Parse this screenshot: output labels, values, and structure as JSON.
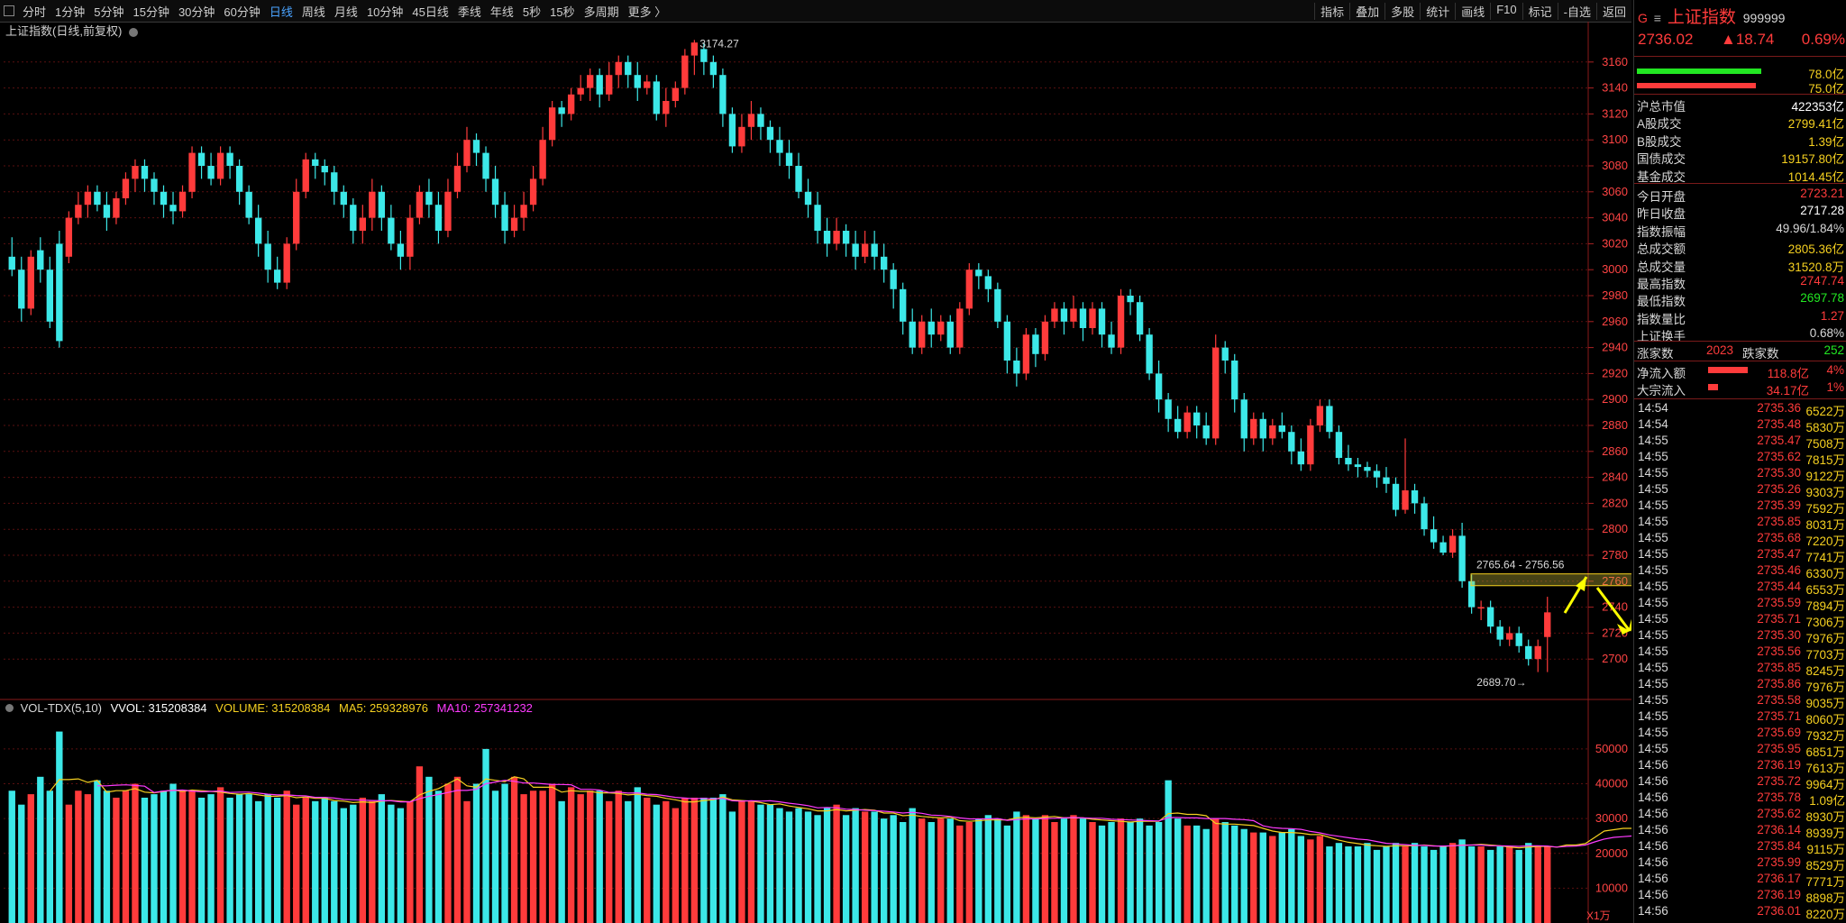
{
  "toolbar": {
    "periods": [
      "分时",
      "1分钟",
      "5分钟",
      "15分钟",
      "30分钟",
      "60分钟",
      "日线",
      "周线",
      "月线",
      "10分钟",
      "45日线",
      "季线",
      "年线",
      "5秒",
      "15秒",
      "多周期",
      "更多 〉"
    ],
    "active_period": "日线",
    "tools": [
      "指标",
      "叠加",
      "多股",
      "统计",
      "画线",
      "F10",
      "标记",
      "-自选",
      "返回"
    ]
  },
  "chart_title": "上证指数(日线,前复权)",
  "price_axis": {
    "ticks": [
      3160,
      3140,
      3120,
      3100,
      3080,
      3060,
      3040,
      3020,
      3000,
      2980,
      2960,
      2940,
      2920,
      2900,
      2880,
      2860,
      2840,
      2820,
      2800,
      2780,
      2760,
      2740,
      2720,
      2700
    ],
    "min": 2680,
    "max": 3180
  },
  "annotations": {
    "high_label": "3174.27",
    "low_label": "2689.70",
    "range_label": "2765.64 - 2756.56"
  },
  "volume": {
    "info_name": "VOL-TDX(5,10)",
    "vvol": "VVOL: 315208384",
    "volume": "VOLUME: 315208384",
    "ma5": "MA5: 259328976",
    "ma10": "MA10: 257341232",
    "ticks": [
      50000,
      40000,
      30000,
      20000,
      10000
    ],
    "unit": "X1万"
  },
  "candles": [
    [
      3010,
      3000,
      3025,
      2995
    ],
    [
      3000,
      2970,
      3010,
      2960
    ],
    [
      2970,
      3010,
      3015,
      2965
    ],
    [
      3015,
      3000,
      3025,
      2990
    ],
    [
      3000,
      2960,
      3010,
      2955
    ],
    [
      3020,
      2945,
      3030,
      2940
    ],
    [
      3010,
      3040,
      3045,
      3005
    ],
    [
      3040,
      3050,
      3060,
      3035
    ],
    [
      3050,
      3060,
      3065,
      3040
    ],
    [
      3060,
      3050,
      3065,
      3045
    ],
    [
      3050,
      3040,
      3060,
      3030
    ],
    [
      3040,
      3055,
      3060,
      3035
    ],
    [
      3055,
      3070,
      3075,
      3050
    ],
    [
      3070,
      3080,
      3085,
      3060
    ],
    [
      3080,
      3070,
      3085,
      3060
    ],
    [
      3070,
      3060,
      3075,
      3050
    ],
    [
      3060,
      3050,
      3065,
      3040
    ],
    [
      3050,
      3045,
      3060,
      3035
    ],
    [
      3045,
      3060,
      3065,
      3040
    ],
    [
      3060,
      3090,
      3095,
      3055
    ],
    [
      3090,
      3080,
      3095,
      3070
    ],
    [
      3080,
      3070,
      3090,
      3065
    ],
    [
      3070,
      3090,
      3095,
      3065
    ],
    [
      3090,
      3080,
      3095,
      3070
    ],
    [
      3080,
      3060,
      3085,
      3050
    ],
    [
      3060,
      3040,
      3065,
      3035
    ],
    [
      3040,
      3020,
      3050,
      3010
    ],
    [
      3020,
      3000,
      3030,
      2990
    ],
    [
      3000,
      2990,
      3010,
      2985
    ],
    [
      2990,
      3020,
      3025,
      2985
    ],
    [
      3020,
      3060,
      3070,
      3015
    ],
    [
      3060,
      3085,
      3090,
      3055
    ],
    [
      3085,
      3080,
      3090,
      3070
    ],
    [
      3080,
      3075,
      3085,
      3065
    ],
    [
      3075,
      3060,
      3080,
      3050
    ],
    [
      3060,
      3050,
      3065,
      3040
    ],
    [
      3050,
      3030,
      3055,
      3020
    ],
    [
      3030,
      3040,
      3050,
      3020
    ],
    [
      3040,
      3060,
      3070,
      3030
    ],
    [
      3060,
      3040,
      3065,
      3030
    ],
    [
      3040,
      3020,
      3050,
      3015
    ],
    [
      3020,
      3010,
      3030,
      3000
    ],
    [
      3010,
      3040,
      3050,
      3000
    ],
    [
      3040,
      3060,
      3065,
      3035
    ],
    [
      3060,
      3050,
      3070,
      3040
    ],
    [
      3050,
      3030,
      3060,
      3020
    ],
    [
      3030,
      3060,
      3070,
      3025
    ],
    [
      3060,
      3080,
      3090,
      3055
    ],
    [
      3080,
      3100,
      3110,
      3075
    ],
    [
      3100,
      3090,
      3105,
      3080
    ],
    [
      3090,
      3070,
      3095,
      3060
    ],
    [
      3070,
      3050,
      3080,
      3040
    ],
    [
      3050,
      3030,
      3060,
      3020
    ],
    [
      3030,
      3040,
      3050,
      3025
    ],
    [
      3040,
      3050,
      3060,
      3030
    ],
    [
      3050,
      3070,
      3080,
      3045
    ],
    [
      3070,
      3100,
      3110,
      3065
    ],
    [
      3100,
      3125,
      3130,
      3095
    ],
    [
      3125,
      3120,
      3130,
      3110
    ],
    [
      3120,
      3135,
      3140,
      3115
    ],
    [
      3135,
      3140,
      3150,
      3130
    ],
    [
      3140,
      3150,
      3155,
      3130
    ],
    [
      3150,
      3135,
      3155,
      3125
    ],
    [
      3135,
      3150,
      3160,
      3130
    ],
    [
      3150,
      3160,
      3165,
      3140
    ],
    [
      3160,
      3150,
      3165,
      3140
    ],
    [
      3150,
      3140,
      3160,
      3130
    ],
    [
      3140,
      3145,
      3150,
      3135
    ],
    [
      3145,
      3120,
      3150,
      3115
    ],
    [
      3120,
      3130,
      3140,
      3110
    ],
    [
      3130,
      3140,
      3145,
      3125
    ],
    [
      3140,
      3165,
      3170,
      3135
    ],
    [
      3165,
      3175,
      3177,
      3150
    ],
    [
      3170,
      3160,
      3175,
      3150
    ],
    [
      3160,
      3150,
      3165,
      3140
    ],
    [
      3150,
      3120,
      3155,
      3110
    ],
    [
      3120,
      3095,
      3125,
      3090
    ],
    [
      3095,
      3110,
      3120,
      3090
    ],
    [
      3110,
      3120,
      3130,
      3100
    ],
    [
      3120,
      3110,
      3125,
      3100
    ],
    [
      3110,
      3100,
      3115,
      3090
    ],
    [
      3100,
      3090,
      3110,
      3080
    ],
    [
      3090,
      3080,
      3100,
      3070
    ],
    [
      3080,
      3060,
      3090,
      3055
    ],
    [
      3060,
      3050,
      3070,
      3040
    ],
    [
      3050,
      3030,
      3060,
      3020
    ],
    [
      3030,
      3020,
      3040,
      3010
    ],
    [
      3020,
      3030,
      3040,
      3015
    ],
    [
      3030,
      3020,
      3035,
      3010
    ],
    [
      3020,
      3010,
      3030,
      3000
    ],
    [
      3010,
      3020,
      3030,
      3005
    ],
    [
      3020,
      3010,
      3030,
      3000
    ],
    [
      3010,
      3000,
      3020,
      2990
    ],
    [
      3000,
      2985,
      3005,
      2970
    ],
    [
      2985,
      2960,
      2990,
      2950
    ],
    [
      2960,
      2940,
      2970,
      2935
    ],
    [
      2940,
      2960,
      2965,
      2935
    ],
    [
      2960,
      2950,
      2970,
      2940
    ],
    [
      2950,
      2960,
      2965,
      2945
    ],
    [
      2960,
      2940,
      2965,
      2935
    ],
    [
      2940,
      2970,
      2975,
      2935
    ],
    [
      2970,
      3000,
      3005,
      2965
    ],
    [
      3000,
      2995,
      3005,
      2985
    ],
    [
      2995,
      2985,
      3000,
      2975
    ],
    [
      2985,
      2960,
      2990,
      2955
    ],
    [
      2960,
      2930,
      2965,
      2920
    ],
    [
      2930,
      2920,
      2940,
      2910
    ],
    [
      2920,
      2950,
      2955,
      2915
    ],
    [
      2950,
      2935,
      2955,
      2925
    ],
    [
      2935,
      2960,
      2965,
      2930
    ],
    [
      2960,
      2970,
      2975,
      2955
    ],
    [
      2970,
      2960,
      2975,
      2950
    ],
    [
      2960,
      2970,
      2980,
      2955
    ],
    [
      2970,
      2955,
      2975,
      2945
    ],
    [
      2955,
      2970,
      2975,
      2950
    ],
    [
      2970,
      2950,
      2975,
      2940
    ],
    [
      2950,
      2940,
      2960,
      2935
    ],
    [
      2940,
      2980,
      2985,
      2935
    ],
    [
      2980,
      2975,
      2985,
      2965
    ],
    [
      2975,
      2950,
      2980,
      2945
    ],
    [
      2950,
      2920,
      2955,
      2915
    ],
    [
      2920,
      2900,
      2930,
      2890
    ],
    [
      2900,
      2885,
      2905,
      2875
    ],
    [
      2885,
      2875,
      2895,
      2870
    ],
    [
      2875,
      2890,
      2895,
      2870
    ],
    [
      2890,
      2880,
      2895,
      2870
    ],
    [
      2880,
      2870,
      2890,
      2865
    ],
    [
      2870,
      2940,
      2950,
      2865
    ],
    [
      2940,
      2930,
      2945,
      2920
    ],
    [
      2930,
      2900,
      2935,
      2890
    ],
    [
      2900,
      2870,
      2905,
      2860
    ],
    [
      2870,
      2885,
      2890,
      2865
    ],
    [
      2885,
      2870,
      2890,
      2860
    ],
    [
      2870,
      2880,
      2885,
      2865
    ],
    [
      2880,
      2875,
      2890,
      2870
    ],
    [
      2875,
      2860,
      2880,
      2850
    ],
    [
      2860,
      2850,
      2870,
      2845
    ],
    [
      2850,
      2880,
      2885,
      2845
    ],
    [
      2880,
      2895,
      2900,
      2875
    ],
    [
      2895,
      2875,
      2900,
      2870
    ],
    [
      2875,
      2855,
      2880,
      2850
    ],
    [
      2855,
      2850,
      2865,
      2845
    ],
    [
      2850,
      2848,
      2855,
      2840
    ],
    [
      2848,
      2845,
      2852,
      2840
    ],
    [
      2845,
      2840,
      2850,
      2832
    ],
    [
      2840,
      2835,
      2848,
      2828
    ],
    [
      2835,
      2815,
      2840,
      2810
    ],
    [
      2815,
      2830,
      2870,
      2812
    ],
    [
      2830,
      2820,
      2835,
      2812
    ],
    [
      2820,
      2800,
      2825,
      2795
    ],
    [
      2800,
      2790,
      2810,
      2785
    ],
    [
      2790,
      2782,
      2795,
      2780
    ],
    [
      2782,
      2795,
      2800,
      2778
    ],
    [
      2795,
      2760,
      2805,
      2755
    ],
    [
      2760,
      2740,
      2765,
      2735
    ],
    [
      2740,
      2740,
      2745,
      2730
    ],
    [
      2740,
      2725,
      2745,
      2720
    ],
    [
      2725,
      2715,
      2730,
      2710
    ],
    [
      2715,
      2720,
      2725,
      2710
    ],
    [
      2720,
      2710,
      2725,
      2705
    ],
    [
      2710,
      2700,
      2715,
      2695
    ],
    [
      2700,
      2710,
      2715,
      2690
    ],
    [
      2717,
      2736,
      2748,
      2690
    ]
  ],
  "volumes": [
    38,
    34,
    37,
    42,
    38,
    55,
    34,
    38,
    37,
    41,
    38,
    36,
    38,
    40,
    36,
    37,
    38,
    40,
    38,
    38,
    36,
    37,
    39,
    36,
    37,
    37,
    35,
    37,
    36,
    38,
    34,
    36,
    35,
    36,
    35,
    33,
    34,
    36,
    35,
    37,
    34,
    33,
    35,
    45,
    42,
    38,
    40,
    42,
    35,
    40,
    50,
    38,
    40,
    42,
    37,
    38,
    38,
    40,
    35,
    39,
    37,
    38,
    38,
    35,
    38,
    35,
    39,
    36,
    34,
    35,
    33,
    36,
    36,
    36,
    36,
    37,
    32,
    35,
    35,
    34,
    34,
    33,
    32,
    33,
    32,
    31,
    33,
    34,
    31,
    33,
    32,
    32,
    30,
    31,
    29,
    33,
    30,
    29,
    30,
    30,
    28,
    29,
    30,
    31,
    30,
    28,
    32,
    31,
    30,
    31,
    29,
    30,
    31,
    30,
    29,
    28,
    29,
    30,
    29,
    30,
    28,
    29,
    41,
    30,
    28,
    28,
    27,
    30,
    29,
    28,
    27,
    26,
    26,
    25,
    26,
    27,
    25,
    24,
    25,
    22,
    23,
    22,
    22,
    23,
    21,
    22,
    23,
    22,
    23,
    22,
    21,
    22,
    23,
    24,
    22,
    22,
    21,
    22,
    22,
    21,
    23,
    22,
    22,
    21,
    24,
    23,
    24,
    31,
    30,
    26,
    25,
    24,
    25,
    24,
    24,
    24,
    25,
    31
  ],
  "right_panel": {
    "header": {
      "code_prefix": "G",
      "menu_icon": "≡",
      "name": "上证指数",
      "code": "999999"
    },
    "quote": {
      "price": "2736.02",
      "change": "▲18.74",
      "pct": "0.69%"
    },
    "bars": [
      {
        "value": "78.0亿",
        "color": "#22e722",
        "fill": 0.92
      },
      {
        "value": "75.0亿",
        "color": "#ff3b3b",
        "fill": 0.88
      }
    ],
    "market": [
      {
        "label": "沪总市值",
        "value": "422353亿",
        "color": "#ffffff"
      },
      {
        "label": "A股成交",
        "value": "2799.41亿",
        "color": "#f5d020"
      },
      {
        "label": "B股成交",
        "value": "1.39亿",
        "color": "#f5d020"
      },
      {
        "label": "国债成交",
        "value": "19157.80亿",
        "color": "#f5d020"
      },
      {
        "label": "基金成交",
        "value": "1014.45亿",
        "color": "#f5d020"
      }
    ],
    "stats": [
      {
        "label": "今日开盘",
        "value": "2723.21",
        "color": "#ff3b3b"
      },
      {
        "label": "昨日收盘",
        "value": "2717.28",
        "color": "#ffffff"
      },
      {
        "label": "指数振幅",
        "value": "49.96/1.84%",
        "color": "#d8d8d8"
      },
      {
        "label": "总成交额",
        "value": "2805.36亿",
        "color": "#f5d020"
      },
      {
        "label": "总成交量",
        "value": "31520.8万",
        "color": "#f5d020"
      },
      {
        "label": "最高指数",
        "value": "2747.74",
        "color": "#ff3b3b"
      },
      {
        "label": "最低指数",
        "value": "2697.78",
        "color": "#22e722"
      },
      {
        "label": "指数量比",
        "value": "1.27",
        "color": "#ff3b3b"
      },
      {
        "label": "上证换手",
        "value": "0.68%",
        "color": "#d8d8d8"
      }
    ],
    "breadth": {
      "up_label": "涨家数",
      "up": "2023",
      "down_label": "跌家数",
      "down": "252"
    },
    "flows": [
      {
        "label": "净流入额",
        "value": "118.8亿",
        "pct": "4%",
        "fill": 0.85
      },
      {
        "label": "大宗流入",
        "value": "34.17亿",
        "pct": "1%",
        "fill": 0.22
      }
    ],
    "ticks": [
      [
        "14:54",
        "2735.36",
        "6522万"
      ],
      [
        "14:54",
        "2735.48",
        "5830万"
      ],
      [
        "14:55",
        "2735.47",
        "7508万"
      ],
      [
        "14:55",
        "2735.62",
        "7815万"
      ],
      [
        "14:55",
        "2735.30",
        "9122万"
      ],
      [
        "14:55",
        "2735.26",
        "9303万"
      ],
      [
        "14:55",
        "2735.39",
        "7592万"
      ],
      [
        "14:55",
        "2735.85",
        "8031万"
      ],
      [
        "14:55",
        "2735.68",
        "7220万"
      ],
      [
        "14:55",
        "2735.47",
        "7741万"
      ],
      [
        "14:55",
        "2735.46",
        "6330万"
      ],
      [
        "14:55",
        "2735.44",
        "6553万"
      ],
      [
        "14:55",
        "2735.59",
        "7894万"
      ],
      [
        "14:55",
        "2735.71",
        "7306万"
      ],
      [
        "14:55",
        "2735.30",
        "7976万"
      ],
      [
        "14:55",
        "2735.56",
        "7703万"
      ],
      [
        "14:55",
        "2735.85",
        "8245万"
      ],
      [
        "14:55",
        "2735.86",
        "7976万"
      ],
      [
        "14:55",
        "2735.58",
        "9035万"
      ],
      [
        "14:55",
        "2735.71",
        "8060万"
      ],
      [
        "14:55",
        "2735.69",
        "7932万"
      ],
      [
        "14:55",
        "2735.95",
        "6851万"
      ],
      [
        "14:56",
        "2736.19",
        "7613万"
      ],
      [
        "14:56",
        "2735.72",
        "9964万"
      ],
      [
        "14:56",
        "2735.78",
        "1.09亿"
      ],
      [
        "14:56",
        "2735.62",
        "8930万"
      ],
      [
        "14:56",
        "2736.14",
        "8939万"
      ],
      [
        "14:56",
        "2735.84",
        "9115万"
      ],
      [
        "14:56",
        "2735.99",
        "8529万"
      ],
      [
        "14:56",
        "2736.17",
        "7771万"
      ],
      [
        "14:56",
        "2736.19",
        "8898万"
      ],
      [
        "14:56",
        "2736.01",
        "8220万"
      ]
    ]
  }
}
